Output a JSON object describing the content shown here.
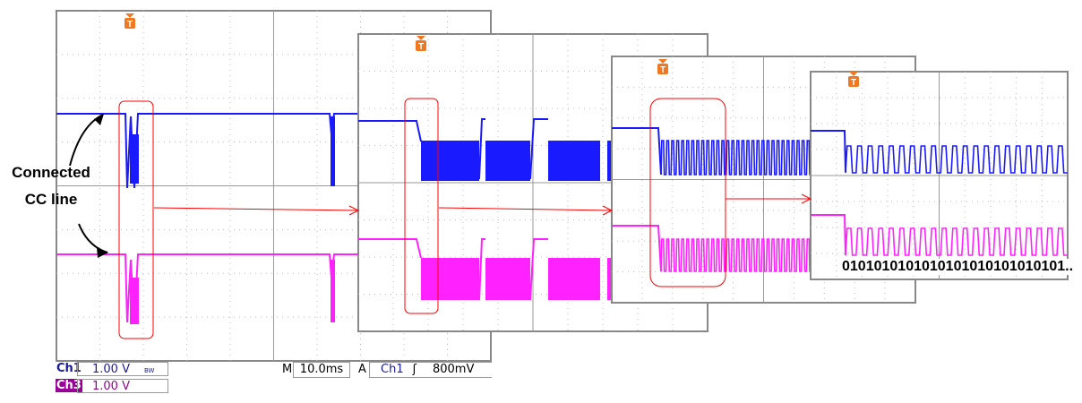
{
  "annotation": {
    "line1": "Connected",
    "line2": "CC line"
  },
  "bits_label": "0101010101010101010101010101..",
  "readout": {
    "ch1_label": "Ch1",
    "ch1_scale": "1.00 V",
    "bw_mark": "BW",
    "ch3_label": "Ch3",
    "ch3_scale": "1.00 V",
    "timebase_prefix": "M",
    "timebase": "10.0ms",
    "trigger_prefix": "A",
    "trigger_source": "Ch1",
    "trigger_slope": "ʃ",
    "trigger_level": "800mV"
  },
  "trigger_marker": "T",
  "colors": {
    "ch1": "#1a1aff",
    "ch3": "#ff22ff",
    "trigger": "#f07820",
    "highlight": "#ff0000",
    "ch3_badge": "#990099"
  }
}
